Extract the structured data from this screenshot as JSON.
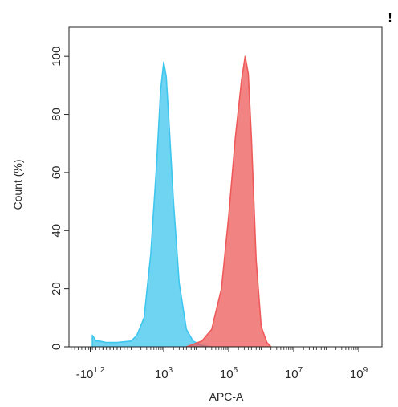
{
  "chart_data": {
    "type": "area",
    "xlabel": "APC-A",
    "ylabel": "Count (%)",
    "x_scale": "biexponential",
    "ylim": [
      0,
      110
    ],
    "yticks": [
      0,
      20,
      40,
      60,
      80,
      100
    ],
    "xticks": [
      {
        "value": -15.85,
        "base": "-10",
        "exp": "1.2"
      },
      {
        "value": 1000,
        "base": "10",
        "exp": "3"
      },
      {
        "value": 100000,
        "base": "10",
        "exp": "5"
      },
      {
        "value": 10000000,
        "base": "10",
        "exp": "7"
      },
      {
        "value": 1000000000,
        "base": "10",
        "exp": "9"
      }
    ],
    "corner_mark": "!",
    "grid": false,
    "series": [
      {
        "color": "#3ec6ee",
        "points": [
          [
            -10,
            4
          ],
          [
            0,
            2
          ],
          [
            10,
            2
          ],
          [
            30,
            1.5
          ],
          [
            60,
            1.5
          ],
          [
            100,
            2
          ],
          [
            150,
            4
          ],
          [
            250,
            10
          ],
          [
            400,
            32
          ],
          [
            600,
            62
          ],
          [
            800,
            88
          ],
          [
            1000,
            98
          ],
          [
            1200,
            93
          ],
          [
            1500,
            75
          ],
          [
            2000,
            50
          ],
          [
            3000,
            22
          ],
          [
            5000,
            6
          ],
          [
            8000,
            2
          ],
          [
            15000,
            0.5
          ],
          [
            30000,
            0
          ]
        ]
      },
      {
        "color": "#ee5a5a",
        "points": [
          [
            5000,
            0
          ],
          [
            15000,
            2
          ],
          [
            30000,
            6
          ],
          [
            60000,
            20
          ],
          [
            100000,
            45
          ],
          [
            160000,
            72
          ],
          [
            250000,
            92
          ],
          [
            320000,
            100
          ],
          [
            400000,
            94
          ],
          [
            500000,
            72
          ],
          [
            700000,
            30
          ],
          [
            1000000,
            7
          ],
          [
            1500000,
            1.5
          ],
          [
            2000000,
            0
          ]
        ]
      }
    ]
  }
}
